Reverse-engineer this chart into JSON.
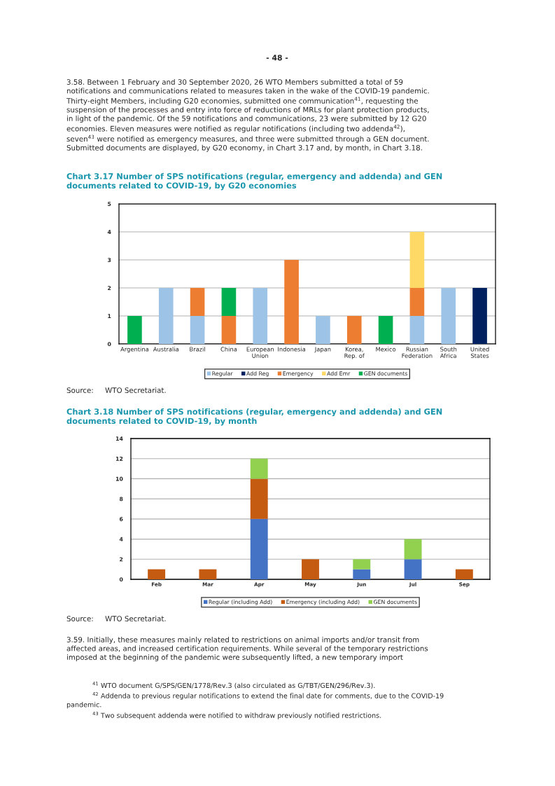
{
  "chart_data": [
    {
      "type": "bar",
      "stacked": true,
      "title": "Chart 3.17 Number of SPS notifications (regular, emergency and addenda) and GEN\ndocuments related to COVID-19, by G20 economies",
      "categories": [
        "Argentina",
        "Australia",
        "Brazil",
        "China",
        "European\nUnion",
        "Indonesia",
        "Japan",
        "Korea,\nRep. of",
        "Mexico",
        "Russian\nFederation",
        "South\nAfrica",
        "United\nStates"
      ],
      "series": [
        {
          "name": "Regular",
          "color": "#9dc3e6",
          "values": [
            0,
            2,
            1,
            0,
            2,
            0,
            1,
            0,
            0,
            1,
            2,
            0
          ]
        },
        {
          "name": "Add Reg",
          "color": "#002060",
          "values": [
            0,
            0,
            0,
            0,
            0,
            0,
            0,
            0,
            0,
            0,
            0,
            2
          ]
        },
        {
          "name": "Emergency",
          "color": "#ed7d31",
          "values": [
            0,
            0,
            1,
            1,
            0,
            3,
            0,
            1,
            0,
            1,
            0,
            0
          ]
        },
        {
          "name": "Add Emr",
          "color": "#ffd966",
          "values": [
            0,
            0,
            0,
            0,
            0,
            0,
            0,
            0,
            0,
            2,
            0,
            0
          ]
        },
        {
          "name": "GEN documents",
          "color": "#00b050",
          "values": [
            1,
            0,
            0,
            1,
            0,
            0,
            0,
            0,
            1,
            0,
            0,
            0
          ]
        }
      ],
      "ylim": [
        0,
        5
      ],
      "yticks": [
        0,
        1,
        2,
        3,
        4,
        5
      ],
      "grid": "y",
      "legend": "bottom",
      "annotations": [
        "- 48 -",
        "3.58. Between 1 February and 30 September 2020, 26 WTO Members submitted a total of 59\nnotifications and communications related to measures taken in the wake of the COVID-19 pandemic.\nThirty-eight Members, including G20 economies, submitted one communication$^{41}$, requesting the\nsuspension of the processes and entry into force of reductions of MRLs for plant protection products,\nin light of the pandemic. Of the 59 notifications and communications, 23 were submitted by 12 G20\neconomies. Eleven measures were notified as regular notifications (including two addenda$^{42}$),\nseven$^{43}$ were notified as emergency measures, and three were submitted through a GEN document.\nSubmitted documents are displayed, by G20 economy, in Chart 3.17 and, by month, in Chart 3.18.",
        "Source:     WTO Secretariat."
      ]
    },
    {
      "type": "bar",
      "stacked": true,
      "title": "Chart 3.18 Number of SPS notifications (regular, emergency and addenda) and GEN\ndocuments related to COVID-19, by month",
      "categories": [
        "Feb",
        "Mar",
        "Apr",
        "May",
        "Jun",
        "Jul",
        "Sep"
      ],
      "series": [
        {
          "name": "Regular (including Add)",
          "color": "#4472c4",
          "values": [
            0,
            0,
            6,
            0,
            1,
            2,
            0
          ]
        },
        {
          "name": "Emergency (including Add)",
          "color": "#c55a11",
          "values": [
            1,
            1,
            4,
            2,
            0,
            0,
            1
          ]
        },
        {
          "name": "GEN documents",
          "color": "#92d050",
          "values": [
            0,
            0,
            2,
            0,
            1,
            2,
            0
          ]
        }
      ],
      "ylim": [
        0,
        14
      ],
      "yticks": [
        0,
        2,
        4,
        6,
        8,
        10,
        12,
        14
      ],
      "grid": "y",
      "legend": "bottom",
      "annotations": [
        "Source:     WTO Secretariat.",
        "3.59. Initially, these measures mainly related to restrictions on animal imports and/or transit from\naffected areas, and increased certification requirements. While several of the temporary restrictions\nimposed at the beginning of the pandemic were subsequently lifted, a new temporary import",
        "$^{41}$ WTO document G/SPS/GEN/1778/Rev.3 (also circulated as G/TBT/GEN/296/Rev.3).",
        "$^{42}$ Addenda to previous regular notifications to extend the final date for comments, due to the COVID-19\npandemic.",
        "$^{43}$ Two subsequent addenda were notified to withdraw previously notified restrictions."
      ]
    }
  ]
}
